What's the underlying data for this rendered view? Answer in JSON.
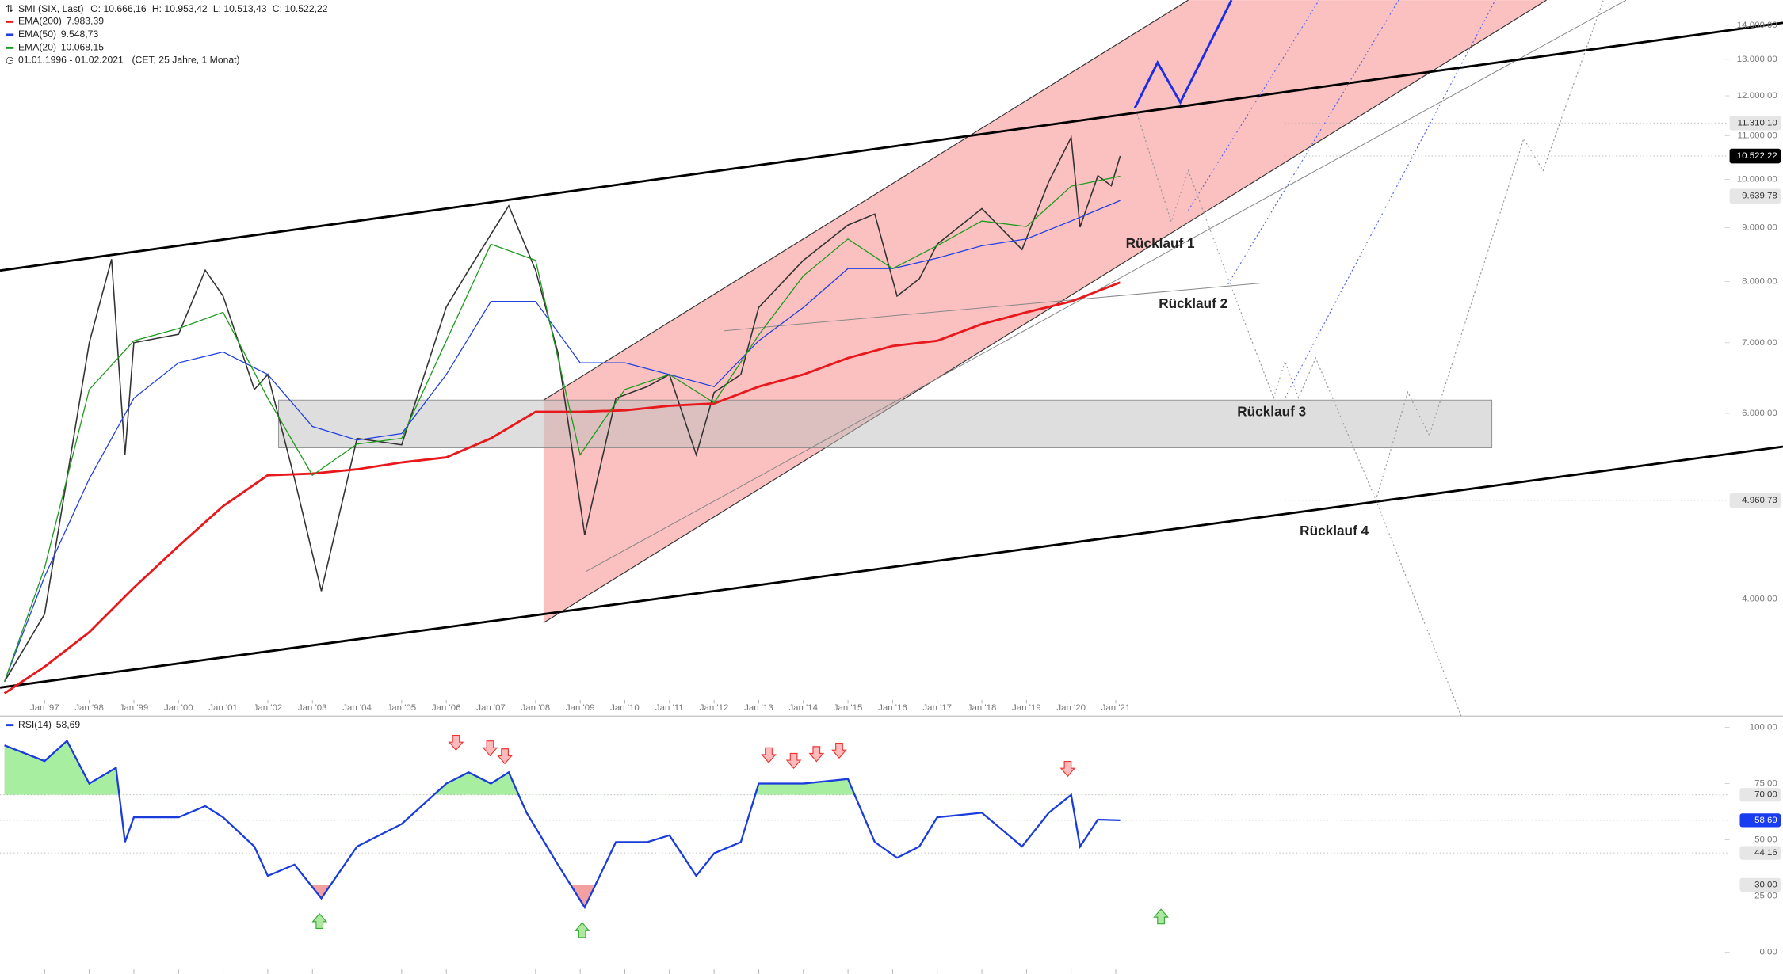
{
  "chart_data": [
    {
      "type": "line",
      "title": "SMI (SIX, Last)",
      "ohlc": [
        "O: 10.666,16",
        "H: 10.953,42",
        "L: 10.513,43",
        "C: 10.522,22"
      ],
      "date_range": "01.01.1996 - 01.02.2021",
      "timezone": "(CET, 25 Jahre, 1 Monat)",
      "log_y": true,
      "xlim": [
        1996,
        2034.6
      ],
      "ylim": [
        3216,
        14790
      ],
      "xticks": [
        {
          "value": 1997,
          "label": "Jan '97"
        },
        {
          "value": 1998,
          "label": "Jan '98"
        },
        {
          "value": 1999,
          "label": "Jan '99"
        },
        {
          "value": 2000,
          "label": "Jan '00"
        },
        {
          "value": 2001,
          "label": "Jan '01"
        },
        {
          "value": 2002,
          "label": "Jan '02"
        },
        {
          "value": 2003,
          "label": "Jan '03"
        },
        {
          "value": 2004,
          "label": "Jan '04"
        },
        {
          "value": 2005,
          "label": "Jan '05"
        },
        {
          "value": 2006,
          "label": "Jan '06"
        },
        {
          "value": 2007,
          "label": "Jan '07"
        },
        {
          "value": 2008,
          "label": "Jan '08"
        },
        {
          "value": 2009,
          "label": "Jan '09"
        },
        {
          "value": 2010,
          "label": "Jan '10"
        },
        {
          "value": 2011,
          "label": "Jan '11"
        },
        {
          "value": 2012,
          "label": "Jan '12"
        },
        {
          "value": 2013,
          "label": "Jan '13"
        },
        {
          "value": 2014,
          "label": "Jan '14"
        },
        {
          "value": 2015,
          "label": "Jan '15"
        },
        {
          "value": 2016,
          "label": "Jan '16"
        },
        {
          "value": 2017,
          "label": "Jan '17"
        },
        {
          "value": 2018,
          "label": "Jan '18"
        },
        {
          "value": 2019,
          "label": "Jan '19"
        },
        {
          "value": 2020,
          "label": "Jan '20"
        },
        {
          "value": 2021,
          "label": "Jan '21"
        }
      ],
      "yticks": [
        {
          "value": 4000,
          "label": "4.000,00"
        },
        {
          "value": 6000,
          "label": "6.000,00"
        },
        {
          "value": 7000,
          "label": "7.000,00"
        },
        {
          "value": 8000,
          "label": "8.000,00"
        },
        {
          "value": 9000,
          "label": "9.000,00"
        },
        {
          "value": 10000,
          "label": "10.000,00"
        },
        {
          "value": 11000,
          "label": "11.000,00"
        },
        {
          "value": 12000,
          "label": "12.000,00"
        },
        {
          "value": 13000,
          "label": "13.000,00"
        },
        {
          "value": 14000,
          "label": "14.000,00"
        }
      ],
      "markers": [
        {
          "value": 11310.1,
          "label": "11.310,10",
          "color": "#e6e6e6"
        },
        {
          "value": 10522.22,
          "label": "10.522,22",
          "color": "#000000"
        },
        {
          "value": 9639.78,
          "label": "9.639,78",
          "color": "#e6e6e6"
        },
        {
          "value": 4960.73,
          "label": "4.960,73",
          "color": "#e6e6e6"
        }
      ],
      "annotations": [
        "Rücklauf 1",
        "Rücklauf 2",
        "Rücklauf 3",
        "Rücklauf 4"
      ],
      "series": [
        {
          "color": "#333333",
          "x": [
            1996.1,
            1997,
            1998,
            1998.5,
            1998.8,
            1999,
            2000,
            2000.6,
            2001,
            2001.7,
            2002,
            2002.6,
            2003.2,
            2004,
            2005,
            2006,
            2006.5,
            2007.4,
            2008,
            2008.5,
            2009.1,
            2009.8,
            2010.5,
            2011,
            2011.6,
            2012,
            2012.6,
            2013,
            2014,
            2015,
            2015.6,
            2016.1,
            2016.6,
            2017,
            2018,
            2018.9,
            2019.5,
            2020,
            2020.2,
            2020.6,
            2020.9,
            2021.1
          ],
          "values": [
            3340,
            3870,
            7000,
            8400,
            5480,
            7000,
            7130,
            8200,
            7750,
            6320,
            6530,
            5200,
            4070,
            5680,
            5600,
            7570,
            8200,
            9440,
            8200,
            6850,
            4600,
            6200,
            6360,
            6530,
            5480,
            6280,
            6530,
            7560,
            8380,
            9050,
            9270,
            7750,
            8050,
            8680,
            9380,
            8580,
            9950,
            10960,
            9010,
            10080,
            9860,
            10522
          ]
        },
        {
          "name": "EMA(200)",
          "value_label": "7.983,39",
          "color": "#e8191c",
          "x": [
            1996.1,
            1997,
            1998,
            1999,
            2000,
            2001,
            2002,
            2003,
            2004,
            2005,
            2006,
            2007,
            2008,
            2009,
            2010,
            2011,
            2012,
            2013,
            2014,
            2015,
            2016,
            2017,
            2018,
            2019,
            2020,
            2021.1
          ],
          "values": [
            3255,
            3450,
            3720,
            4100,
            4490,
            4900,
            5240,
            5260,
            5310,
            5390,
            5450,
            5680,
            6020,
            6020,
            6040,
            6100,
            6130,
            6360,
            6530,
            6770,
            6950,
            7030,
            7290,
            7480,
            7660,
            7983.39
          ]
        },
        {
          "name": "EMA(50)",
          "value_label": "9.548,73",
          "color": "#2240e0",
          "x": [
            1996.1,
            1997,
            1998,
            1999,
            2000,
            2001,
            2002,
            2003,
            2004,
            2005,
            2006,
            2007,
            2008,
            2009,
            2010,
            2011,
            2012,
            2013,
            2014,
            2015,
            2016,
            2017,
            2018,
            2019,
            2020,
            2021.1
          ],
          "values": [
            3340,
            4200,
            5200,
            6200,
            6700,
            6860,
            6530,
            5830,
            5660,
            5740,
            6530,
            7660,
            7660,
            6700,
            6700,
            6530,
            6360,
            7030,
            7560,
            8230,
            8230,
            8420,
            8650,
            8780,
            9130,
            9548.73
          ]
        },
        {
          "name": "EMA(20)",
          "value_label": "10.068,15",
          "color": "#1e9a1e",
          "x": [
            1996.1,
            1997,
            1998,
            1999,
            2000,
            2001,
            2002,
            2003,
            2004,
            2005,
            2006,
            2007,
            2008,
            2009,
            2010,
            2011,
            2012,
            2013,
            2014,
            2015,
            2016,
            2017,
            2018,
            2019,
            2020,
            2021.1
          ],
          "values": [
            3340,
            4280,
            6320,
            7030,
            7220,
            7480,
            6200,
            5240,
            5610,
            5680,
            7030,
            8680,
            8380,
            5480,
            6320,
            6530,
            6140,
            7120,
            8100,
            8780,
            8230,
            8650,
            9130,
            9020,
            9850,
            10068.15
          ]
        }
      ]
    },
    {
      "type": "line",
      "xlim": [
        1996,
        2034.6
      ],
      "ylim": [
        0,
        100
      ],
      "yticks": [
        {
          "value": 0,
          "label": "0,00"
        },
        {
          "value": 25,
          "label": "25,00"
        },
        {
          "value": 50,
          "label": "50,00"
        },
        {
          "value": 75,
          "label": "75,00"
        },
        {
          "value": 100,
          "label": "100,00"
        }
      ],
      "levels": [
        {
          "value": 70,
          "label": "70,00",
          "color": "#e6e6e6"
        },
        {
          "value": 30,
          "label": "30,00",
          "color": "#e6e6e6"
        }
      ],
      "markers": [
        {
          "value": 58.69,
          "label": "58,69",
          "color": "#1a3cf0"
        },
        {
          "value": 44.16,
          "label": "44,16",
          "color": "#e6e6e6"
        }
      ],
      "series": [
        {
          "name": "RSI(14)",
          "value_label": "58,69",
          "color": "#1a3cdc",
          "x": [
            1996.1,
            1997,
            1997.5,
            1998,
            1998.6,
            1998.8,
            1999,
            2000,
            2000.6,
            2001,
            2001.7,
            2002,
            2002.6,
            2003.2,
            2004,
            2005,
            2006,
            2006.5,
            2007,
            2007.4,
            2007.8,
            2008.5,
            2009.1,
            2009.8,
            2010.5,
            2011,
            2011.6,
            2012,
            2012.6,
            2013,
            2014,
            2015,
            2015.6,
            2016.1,
            2016.6,
            2017,
            2018,
            2018.9,
            2019.5,
            2020,
            2020.2,
            2020.6,
            2021.1
          ],
          "values": [
            92,
            85,
            94,
            75,
            82,
            49,
            60,
            60,
            65,
            60,
            47,
            34,
            39,
            24,
            47,
            57,
            75,
            80,
            75,
            80,
            62,
            39,
            20,
            49,
            49,
            52,
            34,
            44,
            49,
            75,
            75,
            77,
            49,
            42,
            47,
            60,
            62,
            47,
            62,
            70,
            47,
            59,
            58.69
          ]
        }
      ]
    }
  ]
}
